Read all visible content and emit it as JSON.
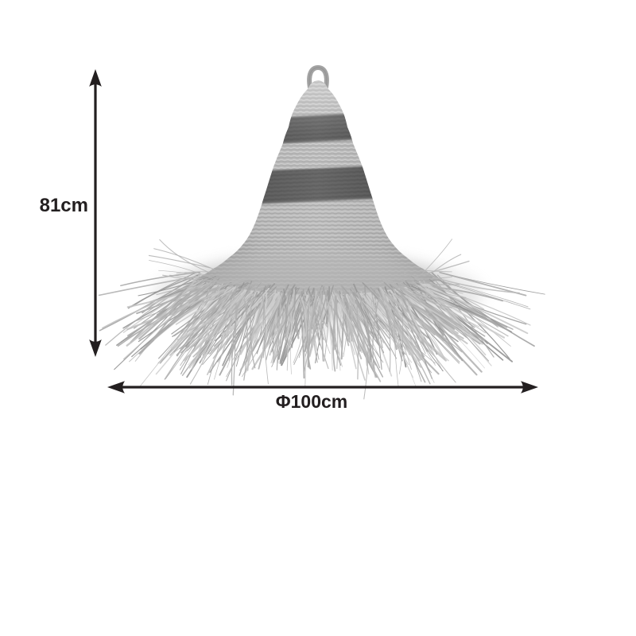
{
  "diagram": {
    "type": "product-dimension-diagram",
    "height_label": "81cm",
    "width_label": "Φ100cm",
    "product_image": "raffia-pendant-lampshade-with-fringe-and-two-dark-stripes"
  },
  "colors": {
    "background": "#ffffff",
    "dimension_ink": "#231f20",
    "weave_light": "#b1b1b1",
    "weave_row_highlight": "#c7c7c7",
    "weave_row_shadow": "#9c9c9c",
    "stripe_dark": "#454545",
    "fringe_gray": "#b5b5b5",
    "loop_gray": "#a3a3a3"
  }
}
